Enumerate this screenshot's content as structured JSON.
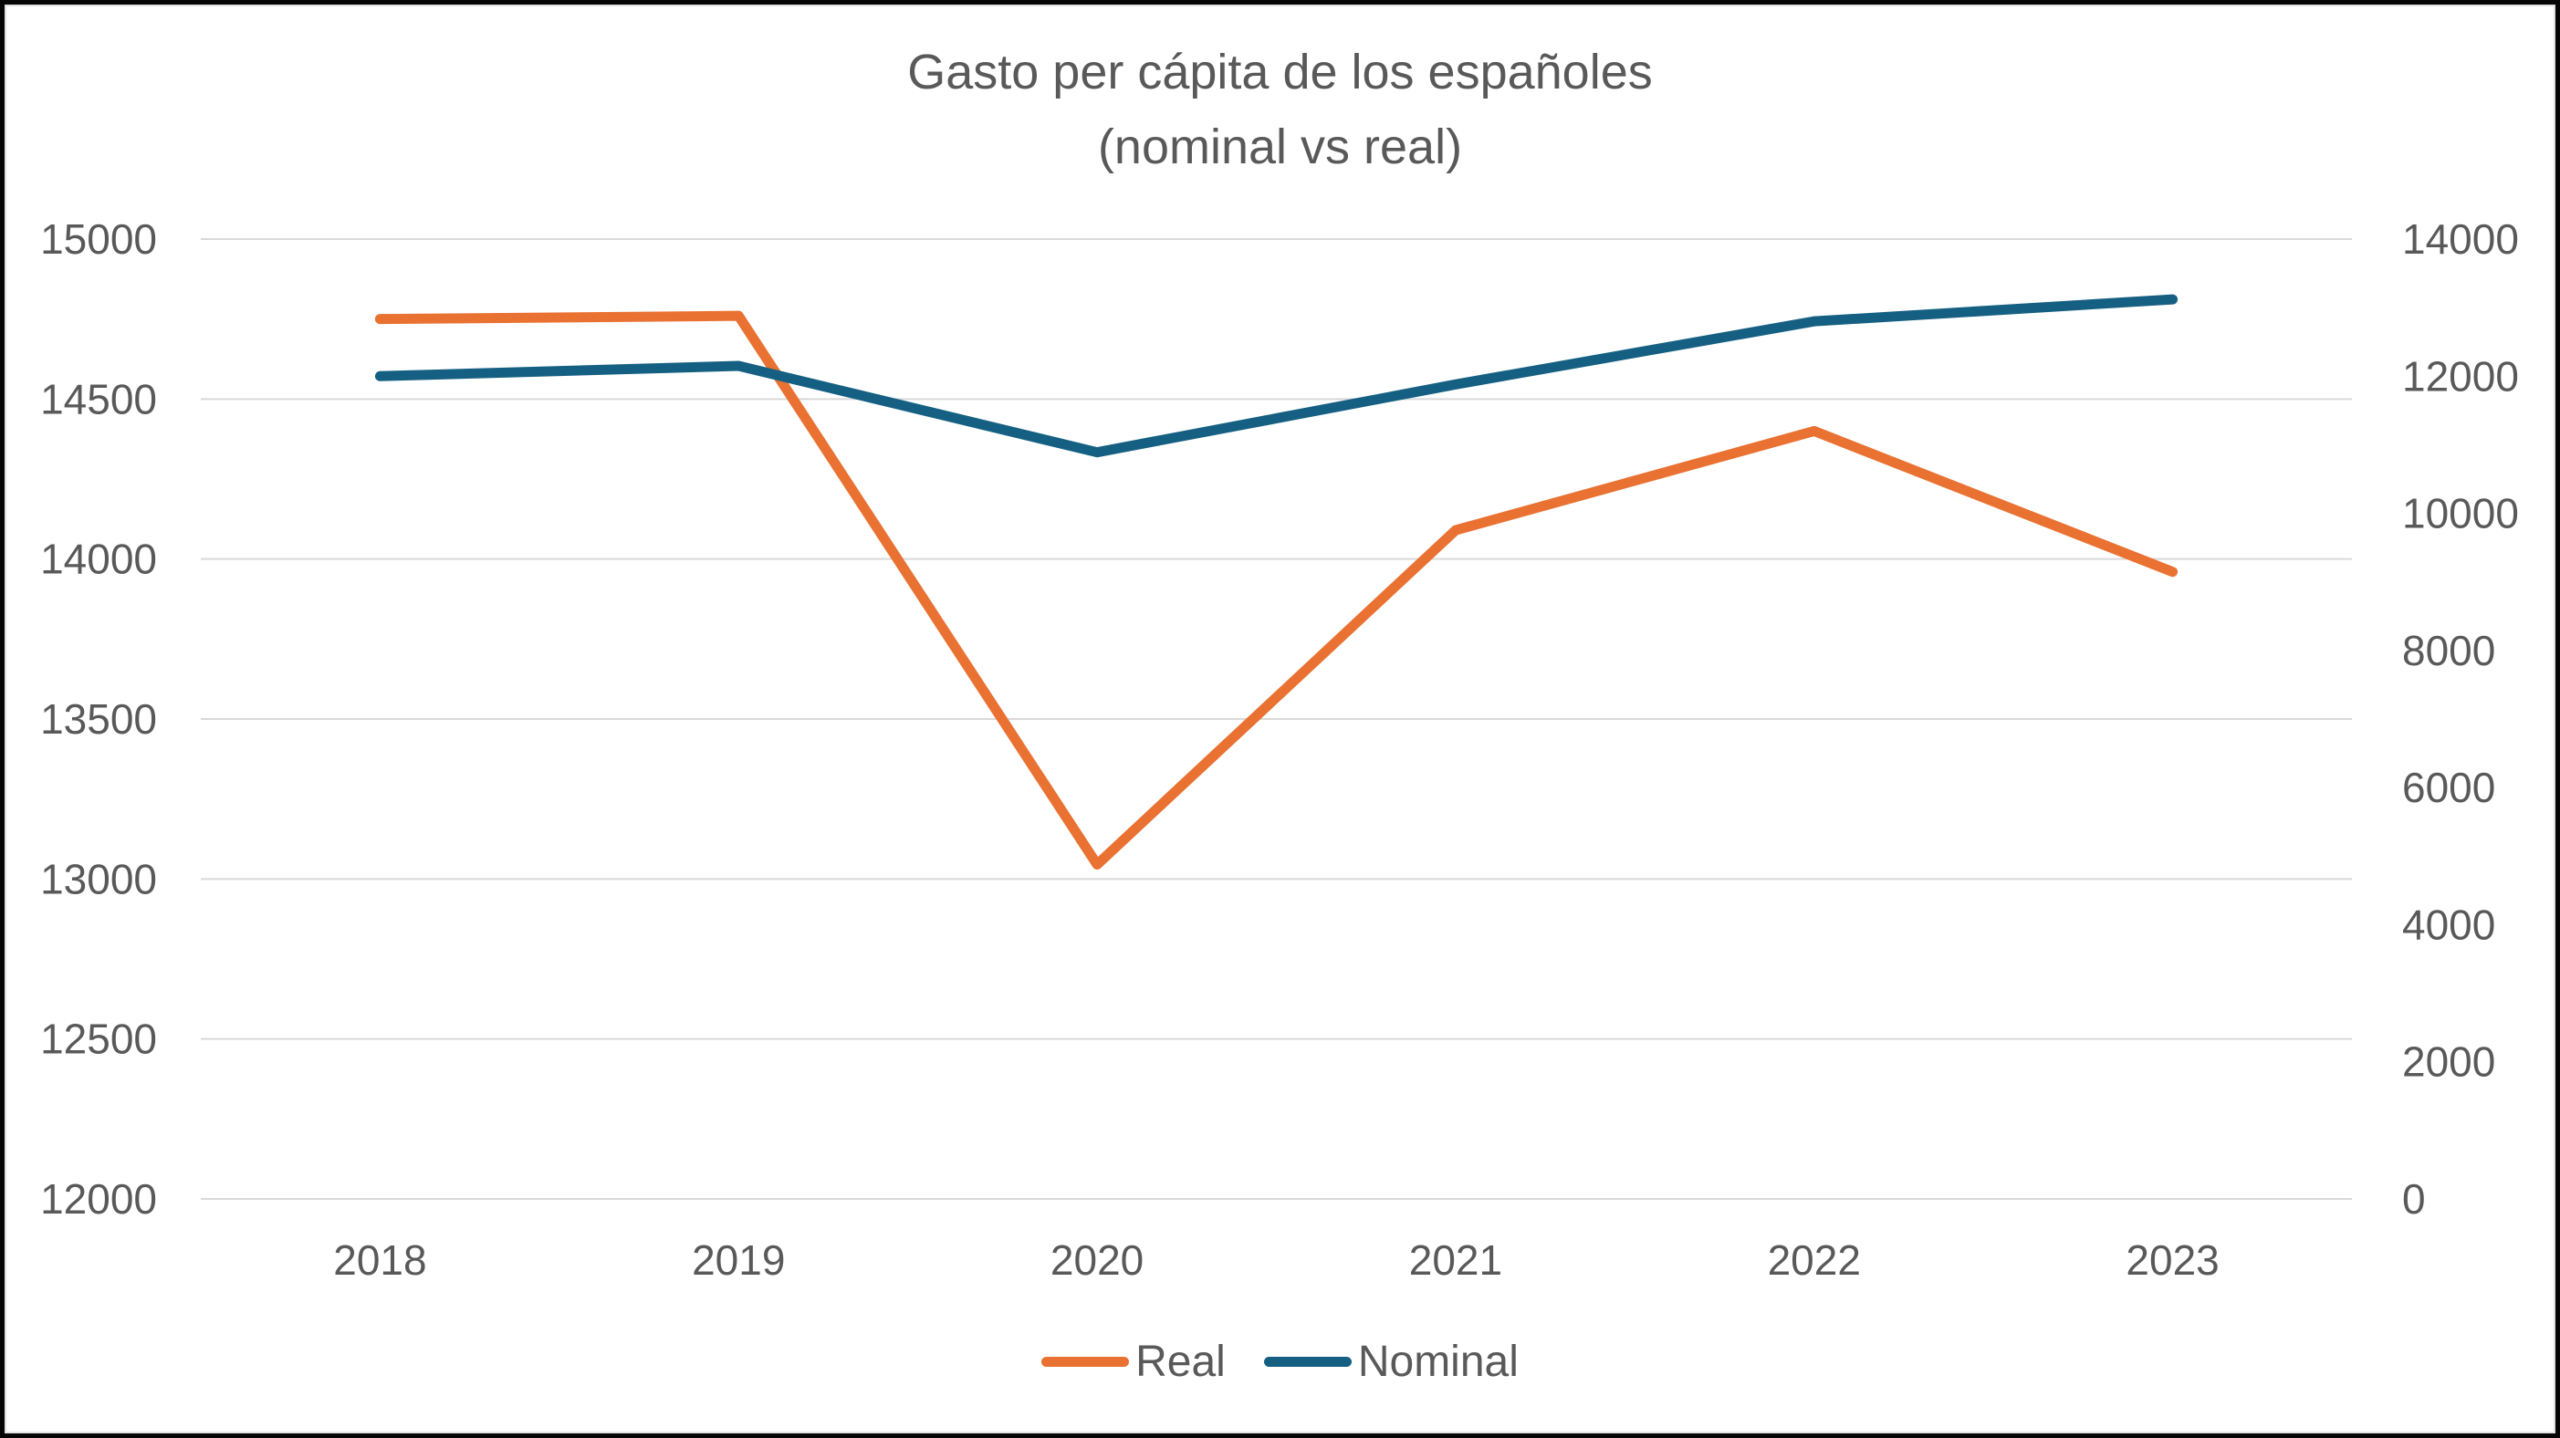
{
  "chart_data": {
    "type": "line",
    "title_line1": "Gasto per cápita de los españoles",
    "title_line2": "(nominal vs real)",
    "categories": [
      "2018",
      "2019",
      "2020",
      "2021",
      "2022",
      "2023"
    ],
    "series": [
      {
        "name": "Real",
        "axis": "left",
        "color": "#E97132",
        "values": [
          14750,
          14760,
          13045,
          14090,
          14400,
          13960
        ]
      },
      {
        "name": "Nominal",
        "axis": "right",
        "color": "#156082",
        "values": [
          12000,
          12150,
          10890,
          11880,
          12800,
          13120
        ]
      }
    ],
    "left_axis": {
      "min": 12000,
      "max": 15000,
      "ticks": [
        15000,
        14500,
        14000,
        13500,
        13000,
        12500,
        12000
      ]
    },
    "right_axis": {
      "min": 0,
      "max": 14000,
      "ticks": [
        14000,
        12000,
        10000,
        8000,
        6000,
        4000,
        2000,
        0
      ]
    },
    "grid": true,
    "legend_position": "bottom"
  }
}
